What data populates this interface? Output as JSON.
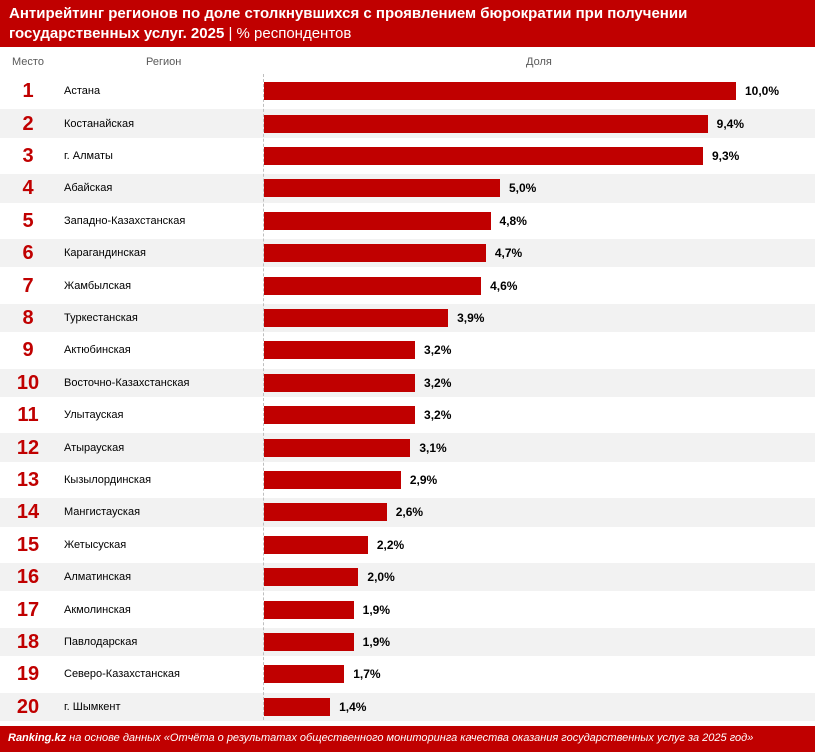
{
  "header": {
    "title_line1": "Антирейтинг регионов по доле столкнувшихся с проявлением бюрократии при получении",
    "title_line2_bold": "государственных услуг. 2025",
    "title_sep": " | ",
    "title_unit": "% респондентов"
  },
  "columns": {
    "rank": "Место",
    "region": "Регион",
    "share": "Доля"
  },
  "colors": {
    "accent": "#c00000",
    "row_alt": "#f2f2f2"
  },
  "chart_data": {
    "type": "bar",
    "orientation": "horizontal",
    "title": "Антирейтинг регионов по доле столкнувшихся с проявлением бюрократии при получении государственных услуг. 2025 | % респондентов",
    "xlabel": "Доля",
    "ylabel": "Регион",
    "unit": "%",
    "xlim": [
      0,
      10
    ],
    "ranks": [
      "1",
      "2",
      "3",
      "4",
      "5",
      "6",
      "7",
      "8",
      "9",
      "10",
      "11",
      "12",
      "13",
      "14",
      "15",
      "16",
      "17",
      "18",
      "19",
      "20"
    ],
    "categories": [
      "Астана",
      "Костанайская",
      "г. Алматы",
      "Абайская",
      "Западно-Казахстанская",
      "Карагандинская",
      "Жамбылская",
      "Туркестанская",
      "Актюбинская",
      "Восточно-Казахстанская",
      "Улытауская",
      "Атырауская",
      "Кызылординская",
      "Мангистауская",
      "Жетысуская",
      "Алматинская",
      "Акмолинская",
      "Павлодарская",
      "Северо-Казахстанская",
      "г. Шымкент"
    ],
    "values": [
      10.0,
      9.4,
      9.3,
      5.0,
      4.8,
      4.7,
      4.6,
      3.9,
      3.2,
      3.2,
      3.2,
      3.1,
      2.9,
      2.6,
      2.2,
      2.0,
      1.9,
      1.9,
      1.7,
      1.4
    ],
    "labels": [
      "10,0%",
      "9,4%",
      "9,3%",
      "5,0%",
      "4,8%",
      "4,7%",
      "4,6%",
      "3,9%",
      "3,2%",
      "3,2%",
      "3,2%",
      "3,1%",
      "2,9%",
      "2,6%",
      "2,2%",
      "2,0%",
      "1,9%",
      "1,9%",
      "1,7%",
      "1,4%"
    ]
  },
  "footer": {
    "brand": "Ranking.kz",
    "source_text": " на основе данных «Отчёта о результатах общественного мониторинга качества оказания государственных услуг за 2025 год»"
  }
}
